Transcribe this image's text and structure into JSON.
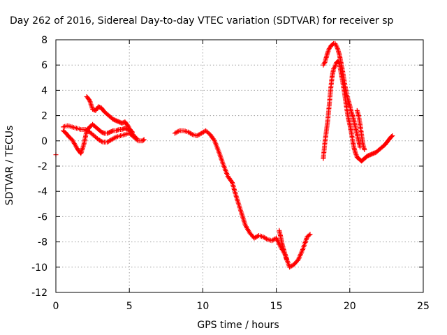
{
  "chart_data": {
    "type": "scatter",
    "title": "Day 262 of 2016, Sidereal Day-to-day VTEC variation (SDTVAR) for receiver sp",
    "xlabel": "GPS time / hours",
    "ylabel": "SDTVAR / TECUs",
    "xlim": [
      0,
      25
    ],
    "ylim": [
      -12,
      8
    ],
    "xticks": [
      0,
      5,
      10,
      15,
      20,
      25
    ],
    "yticks": [
      -12,
      -10,
      -8,
      -6,
      -4,
      -2,
      0,
      2,
      4,
      6,
      8
    ],
    "xtick_labels": [
      "0",
      "5",
      "10",
      "15",
      "20",
      "25"
    ],
    "ytick_labels": [
      "-12",
      "-10",
      "-8",
      "-6",
      "-4",
      "-2",
      "0",
      "2",
      "4",
      "6",
      "8"
    ],
    "grid": true,
    "marker": "+",
    "color": "#ff0000",
    "series": [
      {
        "name": "",
        "segments": [
          {
            "x": [
              0.0,
              0.0
            ],
            "y": [
              -1.1,
              -1.1
            ]
          },
          {
            "x": [
              0.5,
              0.7,
              0.9,
              1.1,
              1.3,
              1.5,
              1.7,
              1.9,
              2.1,
              2.3,
              2.5,
              2.7,
              2.9,
              3.1,
              3.3,
              3.5,
              3.7,
              3.9,
              4.1,
              4.3,
              4.5,
              4.7,
              4.9,
              5.1,
              5.2
            ],
            "y": [
              0.8,
              0.6,
              0.3,
              0.1,
              -0.3,
              -0.7,
              -1.0,
              -0.3,
              0.8,
              1.1,
              1.3,
              1.1,
              0.9,
              0.7,
              0.6,
              0.6,
              0.7,
              0.8,
              0.8,
              0.9,
              0.9,
              1.0,
              0.9,
              0.8,
              0.7
            ]
          },
          {
            "x": [
              0.5,
              0.8,
              1.1,
              1.4,
              1.7,
              2.0,
              2.3,
              2.6,
              2.9,
              3.2,
              3.5,
              3.8,
              4.1,
              4.4,
              4.7,
              5.0,
              5.3,
              5.6,
              5.9,
              6.0
            ],
            "y": [
              1.1,
              1.2,
              1.1,
              1.0,
              0.9,
              0.9,
              0.7,
              0.4,
              0.1,
              -0.1,
              -0.1,
              0.1,
              0.3,
              0.4,
              0.5,
              0.6,
              0.3,
              0.0,
              0.0,
              0.1
            ]
          },
          {
            "x": [
              2.1,
              2.3,
              2.5,
              2.7,
              2.9,
              3.1,
              3.3,
              3.5,
              3.7,
              3.9,
              4.1,
              4.3,
              4.5,
              4.7,
              4.9,
              5.1,
              5.3,
              5.5
            ],
            "y": [
              3.5,
              3.2,
              2.5,
              2.4,
              2.7,
              2.6,
              2.3,
              2.1,
              1.9,
              1.7,
              1.6,
              1.5,
              1.4,
              1.5,
              1.2,
              0.8,
              0.4,
              0.2
            ]
          },
          {
            "x": [
              8.1,
              8.4,
              8.7,
              9.0,
              9.3,
              9.6,
              9.9,
              10.2,
              10.5,
              10.8,
              11.1,
              11.4,
              11.7,
              12.0,
              12.3,
              12.6,
              12.9,
              13.2,
              13.5,
              13.8,
              14.1,
              14.4,
              14.7,
              15.0,
              15.3,
              15.6,
              15.9,
              16.2,
              16.5,
              16.8,
              17.1,
              17.3
            ],
            "y": [
              0.6,
              0.8,
              0.8,
              0.7,
              0.5,
              0.4,
              0.6,
              0.8,
              0.5,
              0.0,
              -0.9,
              -1.9,
              -2.8,
              -3.3,
              -4.5,
              -5.6,
              -6.7,
              -7.3,
              -7.7,
              -7.5,
              -7.6,
              -7.8,
              -7.9,
              -7.7,
              -8.4,
              -9.0,
              -10.0,
              -9.8,
              -9.4,
              -8.6,
              -7.6,
              -7.4
            ]
          },
          {
            "x": [
              15.2,
              15.3,
              15.4,
              15.5,
              15.6,
              15.7
            ],
            "y": [
              -7.1,
              -7.6,
              -8.2,
              -8.6,
              -9.0,
              -9.4
            ]
          },
          {
            "x": [
              18.2,
              18.3,
              18.4,
              18.5,
              18.6,
              18.7,
              18.8,
              18.9,
              19.0,
              19.1,
              19.2,
              19.3,
              19.4,
              19.5,
              19.6,
              19.7,
              19.8,
              19.9,
              20.0,
              20.1,
              20.2,
              20.3,
              20.4,
              20.5,
              20.6,
              20.7,
              20.8,
              20.9,
              21.0,
              21.1,
              21.2,
              21.4,
              21.6,
              21.8,
              22.0,
              22.2,
              22.4,
              22.6,
              22.8,
              22.9
            ],
            "y": [
              -1.4,
              -0.2,
              0.7,
              1.6,
              2.8,
              4.1,
              5.1,
              5.7,
              5.9,
              6.2,
              6.3,
              6.1,
              5.4,
              4.8,
              4.1,
              3.3,
              2.5,
              1.8,
              1.3,
              0.7,
              0.0,
              -0.6,
              -1.0,
              -1.3,
              -1.4,
              -1.5,
              -1.6,
              -1.5,
              -1.4,
              -1.3,
              -1.2,
              -1.1,
              -1.0,
              -0.9,
              -0.7,
              -0.5,
              -0.3,
              0.0,
              0.3,
              0.4
            ]
          },
          {
            "x": [
              18.2,
              18.3,
              18.4,
              18.5,
              18.6,
              18.7,
              18.8,
              18.9,
              19.0,
              19.1,
              19.2,
              19.3,
              19.4,
              19.5,
              19.6,
              19.7,
              19.8,
              19.9,
              20.0,
              20.1,
              20.2,
              20.3,
              20.4,
              20.5,
              20.6,
              20.7
            ],
            "y": [
              6.0,
              6.2,
              6.6,
              7.0,
              7.3,
              7.5,
              7.6,
              7.7,
              7.7,
              7.5,
              7.2,
              6.8,
              6.2,
              5.6,
              4.9,
              4.2,
              3.6,
              3.2,
              2.8,
              2.3,
              2.0,
              1.5,
              1.0,
              0.5,
              0.0,
              -0.5
            ]
          },
          {
            "x": [
              20.5,
              20.6,
              20.7,
              20.8,
              20.9,
              21.0
            ],
            "y": [
              2.4,
              2.0,
              1.3,
              0.5,
              -0.3,
              -0.7
            ]
          }
        ]
      }
    ]
  }
}
